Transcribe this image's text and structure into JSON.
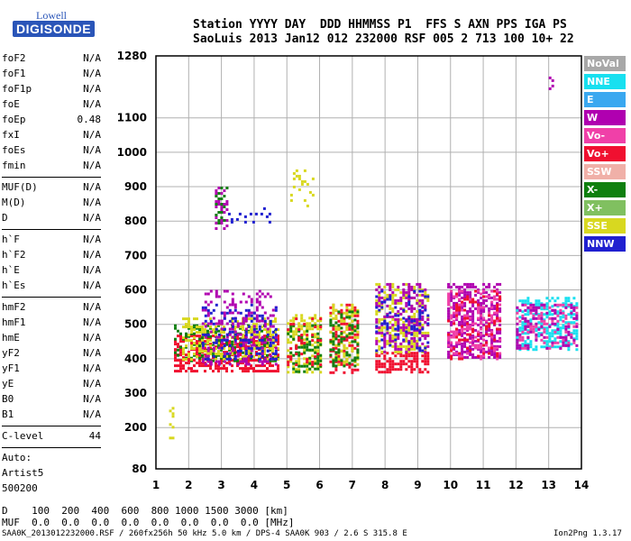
{
  "logo": {
    "line1": "Lowell",
    "line2": "DIGISONDE"
  },
  "header": {
    "line1": "Station YYYY DAY  DDD HHMMSS P1  FFS S AXN PPS IGA PS",
    "line2": "SaoLuis 2013 Jan12 012 232000 RSF 005 2 713 100 10+ 22"
  },
  "params": {
    "group1": [
      {
        "label": "foF2",
        "value": "N/A"
      },
      {
        "label": "foF1",
        "value": "N/A"
      },
      {
        "label": "foF1p",
        "value": "N/A"
      },
      {
        "label": "foE",
        "value": "N/A"
      },
      {
        "label": "foEp",
        "value": "0.48"
      },
      {
        "label": "fxI",
        "value": "N/A"
      },
      {
        "label": "foEs",
        "value": "N/A"
      },
      {
        "label": "fmin",
        "value": "N/A"
      }
    ],
    "group2": [
      {
        "label": "MUF(D)",
        "value": "N/A"
      },
      {
        "label": "M(D)",
        "value": "N/A"
      },
      {
        "label": "D",
        "value": "N/A"
      }
    ],
    "group3": [
      {
        "label": "h`F",
        "value": "N/A"
      },
      {
        "label": "h`F2",
        "value": "N/A"
      },
      {
        "label": "h`E",
        "value": "N/A"
      },
      {
        "label": "h`Es",
        "value": "N/A"
      }
    ],
    "group4": [
      {
        "label": "hmF2",
        "value": "N/A"
      },
      {
        "label": "hmF1",
        "value": "N/A"
      },
      {
        "label": "hmE",
        "value": "N/A"
      },
      {
        "label": "yF2",
        "value": "N/A"
      },
      {
        "label": "yF1",
        "value": "N/A"
      },
      {
        "label": "yE",
        "value": "N/A"
      },
      {
        "label": "B0",
        "value": "N/A"
      },
      {
        "label": "B1",
        "value": "N/A"
      }
    ],
    "clevel": {
      "label": "C-level",
      "value": "44"
    },
    "auto": [
      "Auto:",
      "Artist5",
      "500200"
    ]
  },
  "legend": [
    {
      "label": "NoVal",
      "color": "#a8a8a8"
    },
    {
      "label": "NNE",
      "color": "#18e0f0"
    },
    {
      "label": "E",
      "color": "#3aa8f0"
    },
    {
      "label": "W",
      "color": "#b000b0"
    },
    {
      "label": "Vo-",
      "color": "#f040a8"
    },
    {
      "label": "Vo+",
      "color": "#f01030"
    },
    {
      "label": "SSW",
      "color": "#f0b0a8"
    },
    {
      "label": "X-",
      "color": "#108010"
    },
    {
      "label": "X+",
      "color": "#80c060"
    },
    {
      "label": "SSE",
      "color": "#d8d820"
    },
    {
      "label": "NNW",
      "color": "#2020d0"
    }
  ],
  "chart_data": {
    "type": "scatter",
    "xlim": [
      1,
      14
    ],
    "ylim": [
      80,
      1280
    ],
    "x_ticks": [
      1,
      2,
      3,
      4,
      5,
      6,
      7,
      8,
      9,
      10,
      11,
      12,
      13,
      14
    ],
    "y_ticks": [
      80,
      200,
      300,
      400,
      500,
      600,
      700,
      800,
      900,
      1000,
      1100,
      1280
    ],
    "y_tick_labels": [
      "80",
      "200",
      "300",
      "400",
      "500",
      "600",
      "700",
      "800",
      "900",
      "1000",
      "1100",
      "1280"
    ],
    "grid": true,
    "clusters": [
      {
        "x": [
          1.4,
          1.5
        ],
        "y": [
          160,
          260
        ],
        "color": "#d8d820",
        "density": 0.35
      },
      {
        "x": [
          1.55,
          4.7
        ],
        "y": [
          360,
          470
        ],
        "color": "#f01030",
        "density": 0.55
      },
      {
        "x": [
          1.55,
          4.7
        ],
        "y": [
          390,
          500
        ],
        "color": "#108010",
        "density": 0.3
      },
      {
        "x": [
          1.8,
          4.7
        ],
        "y": [
          400,
          520
        ],
        "color": "#d8d820",
        "density": 0.35
      },
      {
        "x": [
          2.4,
          4.7
        ],
        "y": [
          380,
          600
        ],
        "color": "#b000b0",
        "density": 0.25
      },
      {
        "x": [
          2.4,
          4.7
        ],
        "y": [
          400,
          560
        ],
        "color": "#2020d0",
        "density": 0.2
      },
      {
        "x": [
          2.8,
          3.2
        ],
        "y": [
          780,
          900
        ],
        "color": "#b000b0",
        "density": 0.35
      },
      {
        "x": [
          2.8,
          3.2
        ],
        "y": [
          780,
          900
        ],
        "color": "#108010",
        "density": 0.2
      },
      {
        "x": [
          3.2,
          4.6
        ],
        "y": [
          800,
          840
        ],
        "color": "#2020d0",
        "density": 0.15
      },
      {
        "x": [
          5.0,
          6.0
        ],
        "y": [
          360,
          530
        ],
        "color": "#d8d820",
        "density": 0.45
      },
      {
        "x": [
          5.0,
          6.0
        ],
        "y": [
          360,
          500
        ],
        "color": "#108010",
        "density": 0.3
      },
      {
        "x": [
          5.0,
          6.0
        ],
        "y": [
          380,
          520
        ],
        "color": "#f01030",
        "density": 0.15
      },
      {
        "x": [
          5.1,
          5.8
        ],
        "y": [
          840,
          950
        ],
        "color": "#d8d820",
        "density": 0.15
      },
      {
        "x": [
          6.3,
          7.2
        ],
        "y": [
          360,
          560
        ],
        "color": "#f01030",
        "density": 0.35
      },
      {
        "x": [
          6.3,
          7.2
        ],
        "y": [
          380,
          560
        ],
        "color": "#d8d820",
        "density": 0.35
      },
      {
        "x": [
          6.3,
          7.2
        ],
        "y": [
          380,
          540
        ],
        "color": "#108010",
        "density": 0.3
      },
      {
        "x": [
          7.7,
          9.3
        ],
        "y": [
          360,
          420
        ],
        "color": "#f01030",
        "density": 0.55
      },
      {
        "x": [
          7.7,
          9.3
        ],
        "y": [
          420,
          620
        ],
        "color": "#d8d820",
        "density": 0.35
      },
      {
        "x": [
          7.7,
          9.3
        ],
        "y": [
          420,
          620
        ],
        "color": "#b000b0",
        "density": 0.3
      },
      {
        "x": [
          7.7,
          9.3
        ],
        "y": [
          420,
          600
        ],
        "color": "#2020d0",
        "density": 0.15
      },
      {
        "x": [
          9.9,
          11.5
        ],
        "y": [
          400,
          620
        ],
        "color": "#b000b0",
        "density": 0.45
      },
      {
        "x": [
          9.9,
          11.5
        ],
        "y": [
          400,
          600
        ],
        "color": "#f040a8",
        "density": 0.3
      },
      {
        "x": [
          9.9,
          11.5
        ],
        "y": [
          400,
          600
        ],
        "color": "#f01030",
        "density": 0.15
      },
      {
        "x": [
          12.0,
          13.9
        ],
        "y": [
          430,
          580
        ],
        "color": "#18e0f0",
        "density": 0.4
      },
      {
        "x": [
          12.0,
          13.9
        ],
        "y": [
          430,
          560
        ],
        "color": "#f040a8",
        "density": 0.25
      },
      {
        "x": [
          12.0,
          13.9
        ],
        "y": [
          430,
          560
        ],
        "color": "#b000b0",
        "density": 0.2
      },
      {
        "x": [
          13.0,
          13.1
        ],
        "y": [
          1160,
          1220
        ],
        "color": "#b000b0",
        "density": 0.3
      }
    ]
  },
  "footer": {
    "d_row": "D    100  200  400  600  800 1000 1500 3000 [km]",
    "muf_row": "MUF  0.0  0.0  0.0  0.0  0.0  0.0  0.0  0.0 [MHz]",
    "file_info": "SAA0K_2013012232000.RSF / 260fx256h 50 kHz 5.0 km / DPS-4 SAA0K 903 / 2.6 S 315.8 E",
    "version": "Ion2Png 1.3.17"
  }
}
